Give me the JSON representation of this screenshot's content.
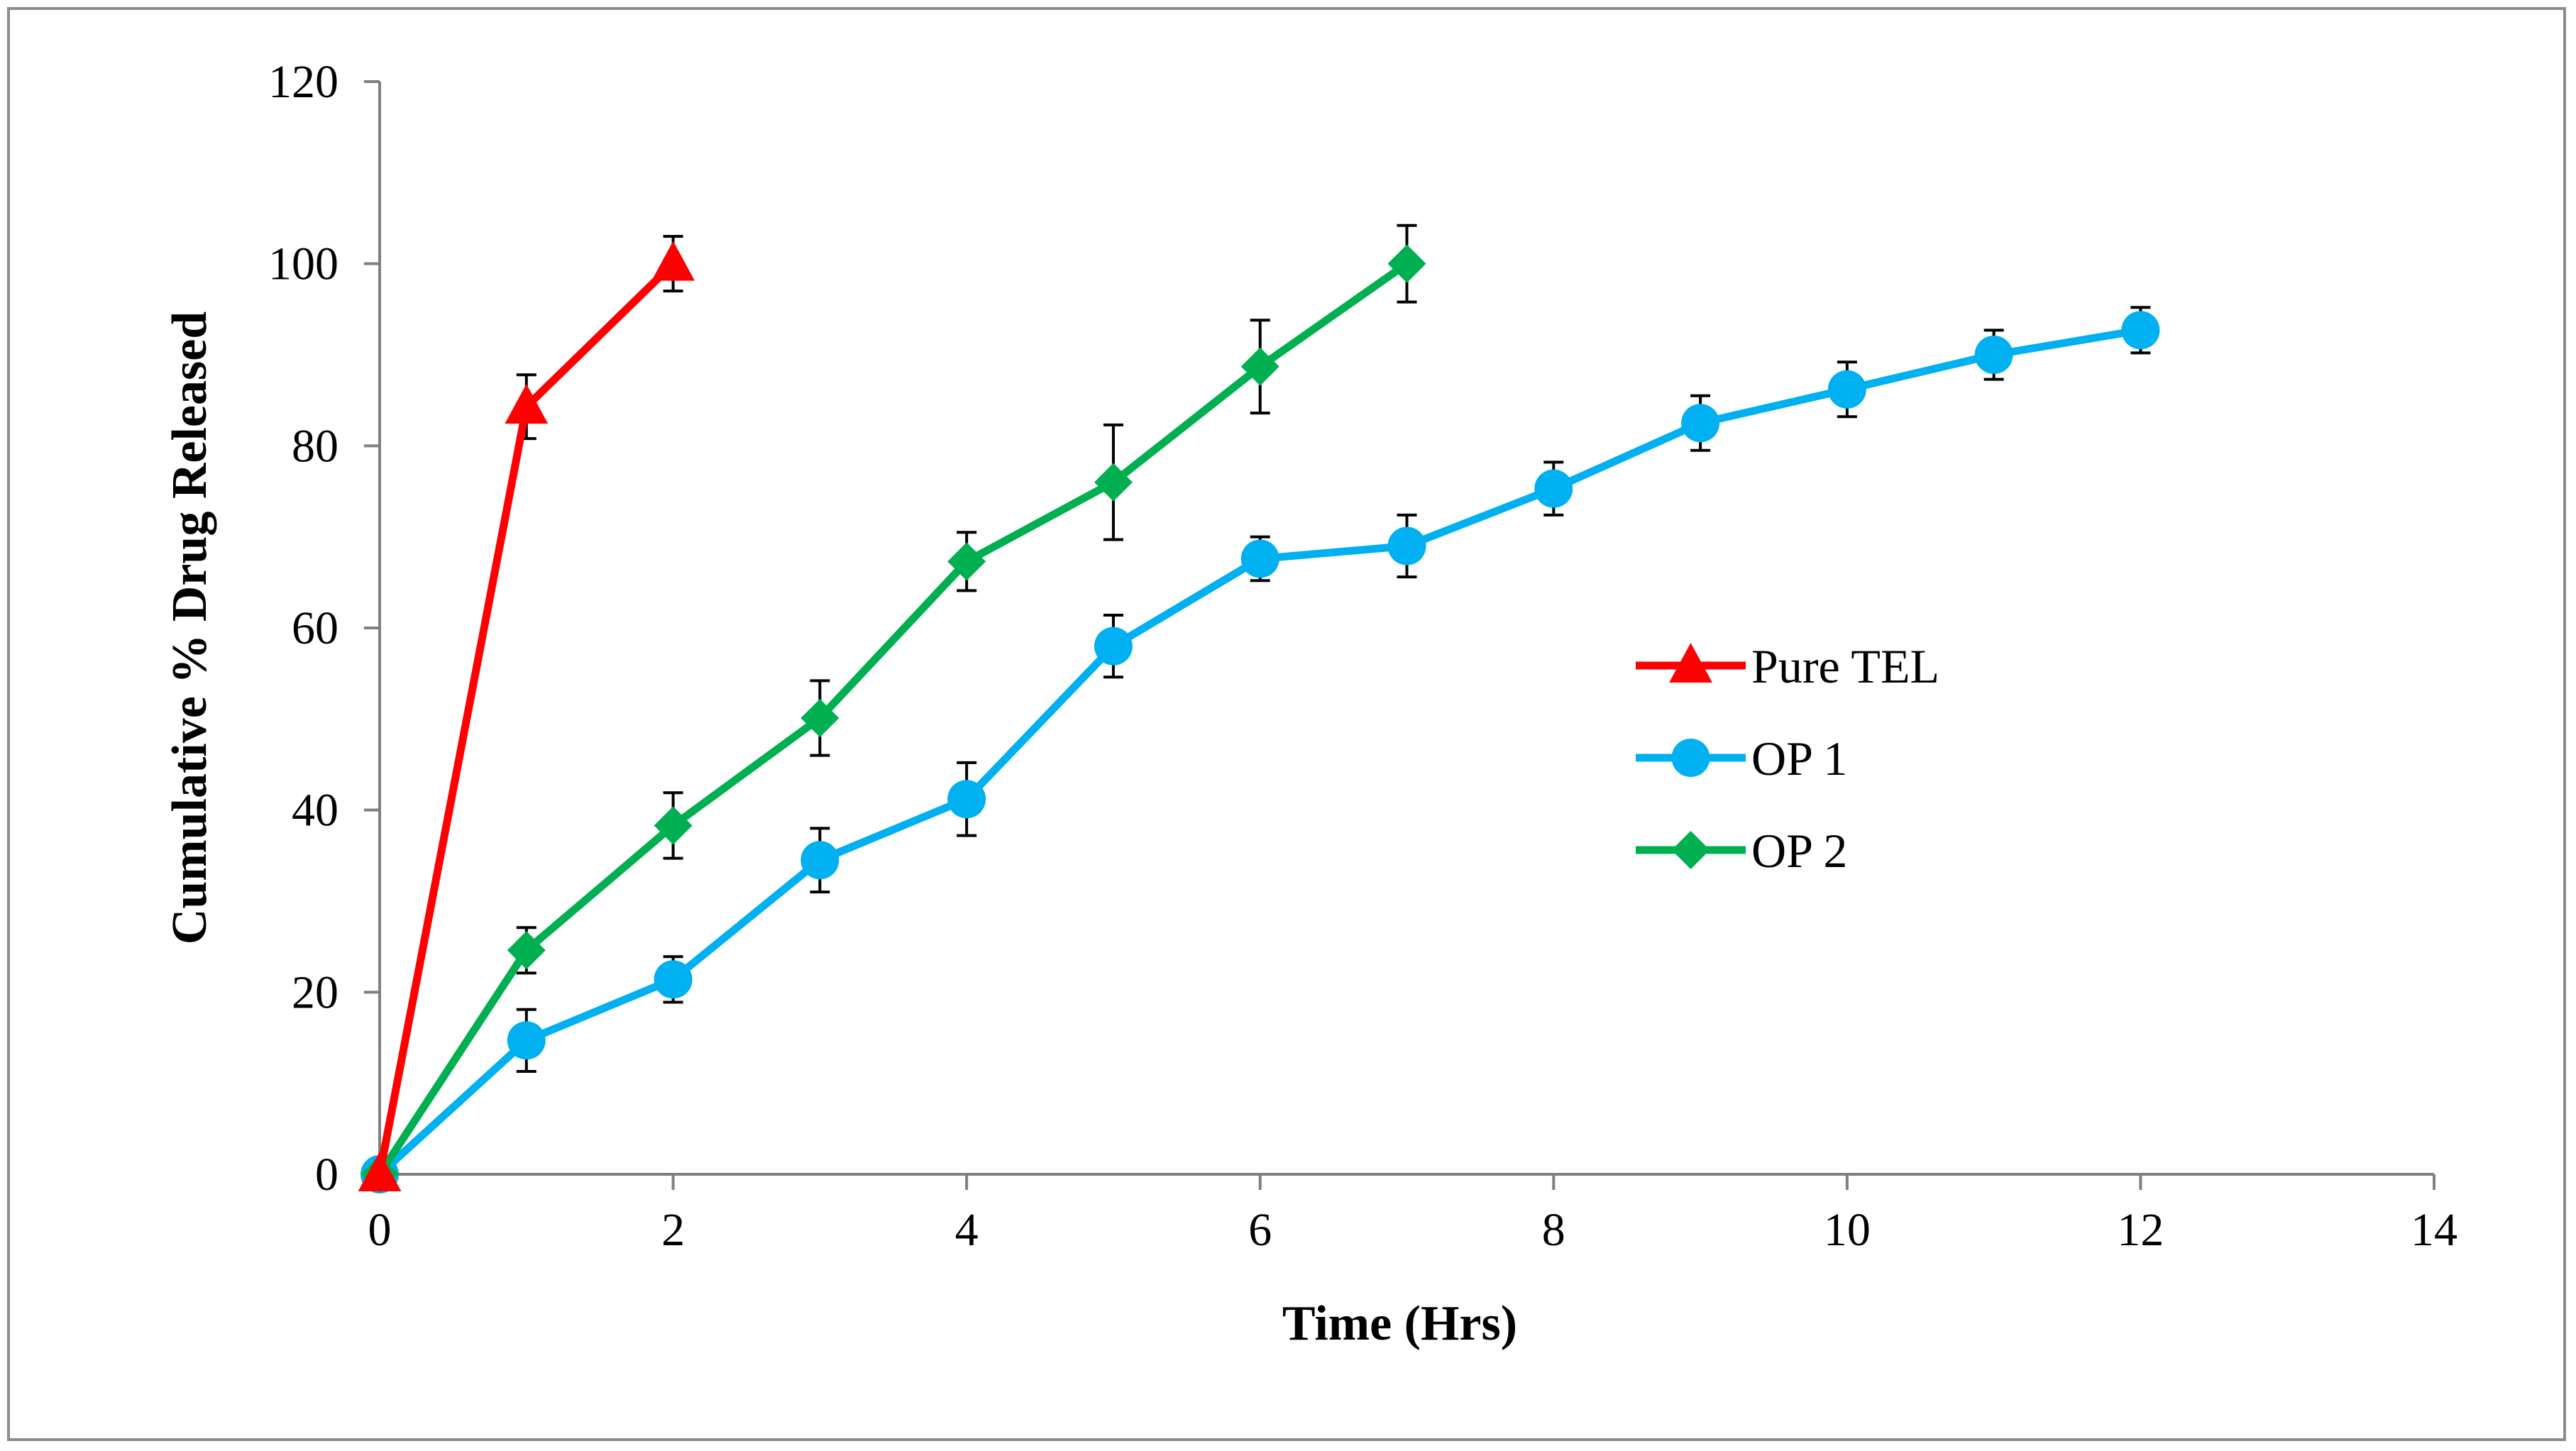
{
  "chart_data": {
    "type": "line",
    "title": "",
    "xlabel": "Time (Hrs)",
    "ylabel": "Cumulative % Drug Released",
    "xlim": [
      0,
      14
    ],
    "ylim": [
      0,
      120
    ],
    "xticks": [
      0,
      2,
      4,
      6,
      8,
      10,
      12,
      14
    ],
    "yticks": [
      0,
      20,
      40,
      60,
      80,
      100,
      120
    ],
    "grid": false,
    "legend_position": "right-middle",
    "series": [
      {
        "name": "Pure TEL",
        "color": "#ff0000",
        "marker": "triangle",
        "x": [
          0,
          1,
          2
        ],
        "y": [
          0,
          84.3,
          100
        ],
        "err": [
          0,
          3.5,
          3
        ]
      },
      {
        "name": "OP 1",
        "color": "#00b0f0",
        "marker": "circle",
        "x": [
          0,
          1,
          2,
          3,
          4,
          5,
          6,
          7,
          8,
          9,
          10,
          11,
          12
        ],
        "y": [
          0,
          14.7,
          21.4,
          34.5,
          41.2,
          58,
          67.6,
          69,
          75.3,
          82.5,
          86.2,
          90,
          92.7
        ],
        "err": [
          0,
          3.4,
          2.5,
          3.5,
          4,
          3.4,
          2.4,
          3.4,
          2.9,
          3,
          3,
          2.7,
          2.5
        ]
      },
      {
        "name": "OP 2",
        "color": "#00b050",
        "marker": "diamond",
        "x": [
          0,
          1,
          2,
          3,
          4,
          5,
          6,
          7
        ],
        "y": [
          0,
          24.6,
          38.3,
          50.1,
          67.3,
          76,
          88.7,
          100
        ],
        "err": [
          0,
          2.5,
          3.6,
          4.1,
          3.2,
          6.3,
          5.1,
          4.2
        ]
      }
    ]
  }
}
